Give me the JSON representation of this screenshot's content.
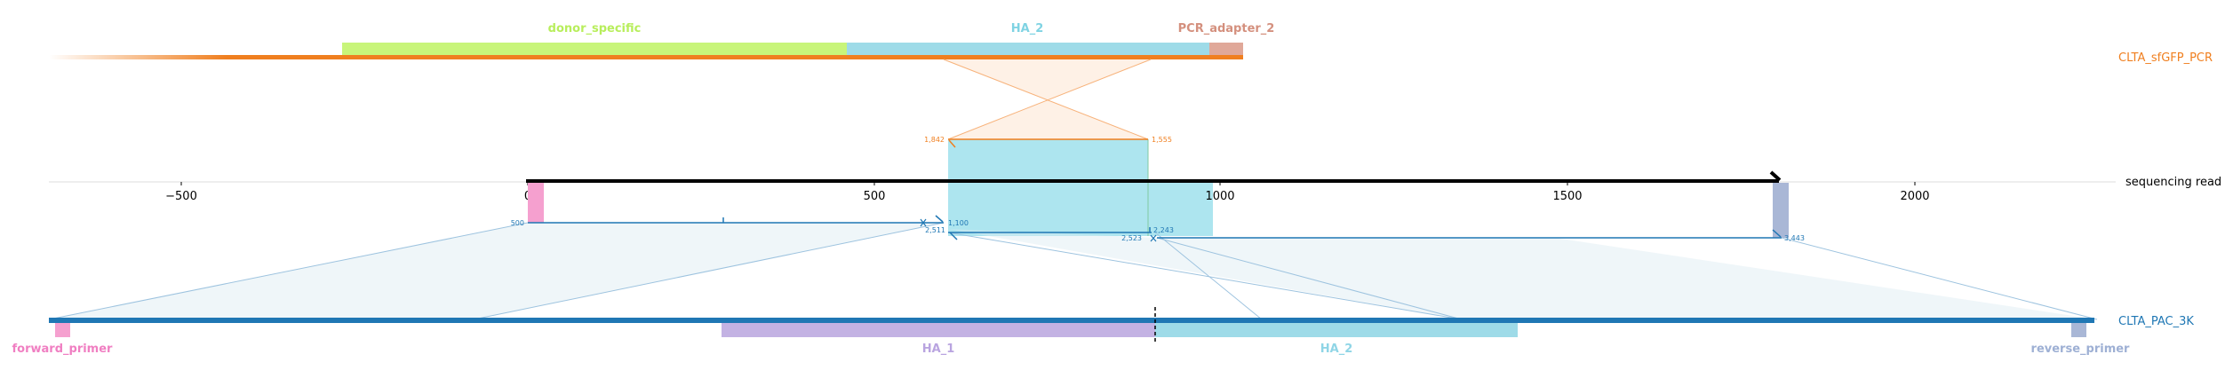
{
  "top_reference": {
    "name": "CLTA_sfGFP_PCR",
    "features": [
      {
        "label": "donor_specific",
        "color": "#c8f57a"
      },
      {
        "label": "HA_2",
        "color": "#9edbe8"
      },
      {
        "label": "PCR_adapter_2",
        "color": "#e0a899"
      }
    ],
    "bar_color": "#f07f1f",
    "junctions": [
      {
        "label": "1,842"
      },
      {
        "label": "1,555"
      }
    ]
  },
  "read": {
    "name": "sequencing read",
    "axis": {
      "ticks": [
        "−500",
        "0",
        "500",
        "1000",
        "1500",
        "2000"
      ]
    },
    "alignments": [
      {
        "start_label": "500",
        "end_label": "1,100"
      },
      {
        "start_label": "2,511",
        "end_label": "2,243"
      },
      {
        "start_label": "2,523",
        "end_label": "3,443"
      }
    ]
  },
  "bottom_reference": {
    "name": "CLTA_PAC_3K",
    "bar_color": "#1f77b4",
    "features": [
      {
        "label": "forward_primer",
        "color": "#f5a0cf"
      },
      {
        "label": "HA_1",
        "color": "#c3b2e3"
      },
      {
        "label": "HA_2",
        "color": "#9edbe8"
      },
      {
        "label": "reverse_primer",
        "color": "#a9b7d6"
      }
    ]
  }
}
